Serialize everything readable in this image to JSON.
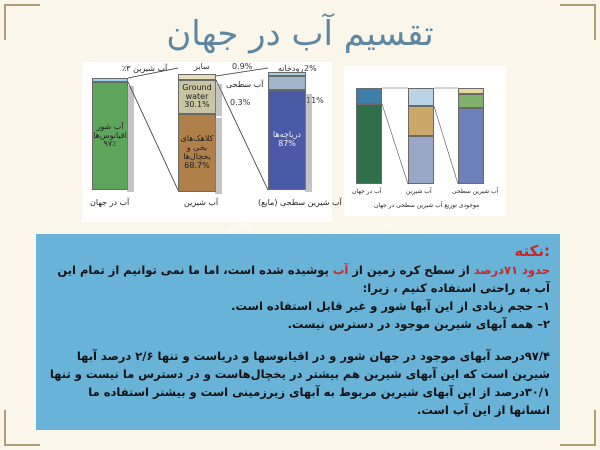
{
  "title": "تقسیم آب در جهان",
  "figure_left": {
    "column1": {
      "top_label": "آب شیرین ۳٪",
      "segment_text": "آب شور اقیانوس‌ها",
      "segment_pct": "۹۷٪",
      "bottom_label": "آب در جهان"
    },
    "column2": {
      "top_pct": "0.9%",
      "top_label": "سایر",
      "seg_ground": "Ground water",
      "seg_ground_pct": "30.1%",
      "seg_ice": "کلاهک‌های یخی و یخچال‌ها",
      "seg_ice_pct": "68.7%",
      "bottom_label": "آب شیرین"
    },
    "column3": {
      "side_label": "آب سطحی",
      "side_pct": "0.3%",
      "top_small_1": "رودخانه",
      "top_small_1_pct": "2%",
      "top_small_2_pct": "11%",
      "seg_text": "دریاچه‌ها",
      "seg_pct": "87%",
      "bottom_label": "آب شیرین سطحی (مایع)"
    }
  },
  "figure_right": {
    "caption": "موجودی توزیع آب شیرین سطحی در جهان",
    "col1_label": "آب در جهان",
    "col2_label": "آب شیرین",
    "col3_label": "آب شیرین سطحی"
  },
  "note": {
    "heading": ":نکته",
    "line1_prefix": "حدود ",
    "line1_red1": "۷۱درصد",
    "line1_mid": " از سطح کره زمین از ",
    "line1_red2": "آب",
    "line1_rest": " پوشیده شده است، اما ما نمی توانیم از تمام این آب به راحتی استفاده کنیم ، زیرا:",
    "item1": "۱– حجم زیادی از این آبها شور و غیر قابل استفاده است.",
    "item2": "۲–  همه آبهای شیرین موجود در دسترس نیست.",
    "paragraph": "۹۷/۴درصد آبهای موجود در جهان شور و در اقیانوسها و دریاست و تنها ۲/۶ درصد آبها شیرین است که این آبهای شیرین هم بیشتر در یخچال‌هاست و در دسترس ما نیست و تنها ۳۰/۱درصد از این آبهای شیرین مربوط به آبهای زیرزمینی است و بیشتر استفاده ما انسانها از این آب است."
  },
  "watermark": "Gama.ir",
  "colors": {
    "title": "#5e87a3",
    "note_bg": "#69b3d9",
    "accent_red": "#c62828",
    "ocean": "#5fa65d",
    "ground": "#c9c4a4",
    "ice": "#b0804a",
    "lakes": "#4b5aa7"
  }
}
